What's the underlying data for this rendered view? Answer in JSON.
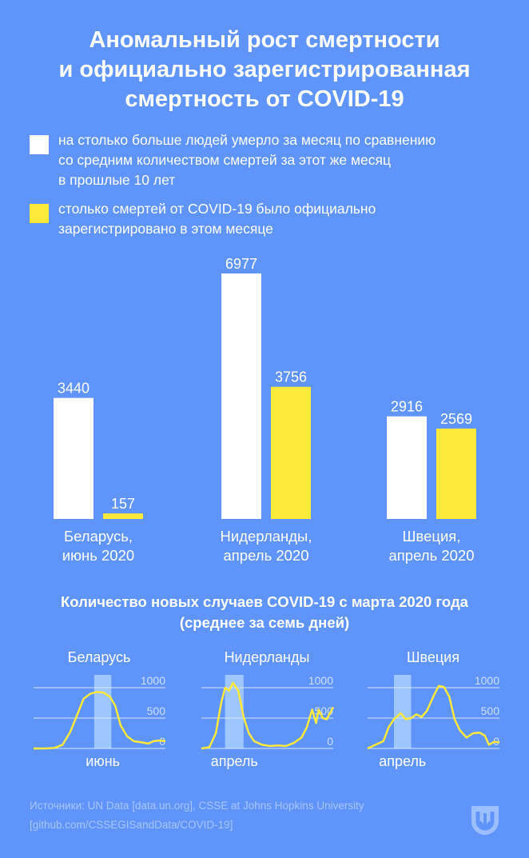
{
  "title": {
    "line1": "Аномальный рост смертности",
    "line2": "и официально зарегистрированная",
    "line3": "смертность от COVID-19"
  },
  "legend": {
    "excess": {
      "line1": "на столько больше людей умерло за месяц по сравнению",
      "line2": "со средним количеством смертей за этот же месяц",
      "line3": "в прошлые 10 лет",
      "color": "#FFFFFF"
    },
    "covid": {
      "line1": "столько смертей от COVID-19 было официально",
      "line2": "зарегистрировано в этом месяце",
      "color": "#FFE93B"
    }
  },
  "chart_data": [
    {
      "type": "bar",
      "categories": [
        {
          "line1": "Беларусь,",
          "line2": "июнь 2020"
        },
        {
          "line1": "Нидерланды,",
          "line2": "апрель 2020"
        },
        {
          "line1": "Швеция,",
          "line2": "апрель 2020"
        }
      ],
      "series": [
        {
          "values": [
            3440,
            6977,
            2916
          ],
          "labels": [
            "3440",
            "6977",
            "2916"
          ],
          "color": "#FFFFFF"
        },
        {
          "values": [
            157,
            3756,
            2569
          ],
          "labels": [
            "157",
            "3756",
            "2569"
          ],
          "color": "#FFE93B"
        }
      ],
      "ylim": [
        0,
        6977
      ]
    },
    {
      "type": "line",
      "title": "Количество новых случаев COVID-19 с марта 2020 года",
      "subtitle": "(среднее за семь дней)",
      "yticks": [
        "0",
        "500",
        "1000"
      ],
      "ylim": [
        0,
        1000
      ],
      "line_color": "#FFE93B",
      "highlight_color": "#A9CFFF",
      "panels": [
        {
          "name": "Беларусь",
          "highlight_month": "июнь",
          "highlight_range": [
            0.46,
            0.59
          ],
          "points": [
            [
              0.0,
              0
            ],
            [
              0.1,
              0
            ],
            [
              0.16,
              10
            ],
            [
              0.22,
              60
            ],
            [
              0.28,
              280
            ],
            [
              0.33,
              550
            ],
            [
              0.38,
              820
            ],
            [
              0.43,
              900
            ],
            [
              0.48,
              930
            ],
            [
              0.53,
              920
            ],
            [
              0.58,
              850
            ],
            [
              0.62,
              700
            ],
            [
              0.66,
              380
            ],
            [
              0.71,
              200
            ],
            [
              0.76,
              120
            ],
            [
              0.82,
              100
            ],
            [
              0.87,
              80
            ],
            [
              0.91,
              120
            ],
            [
              0.95,
              130
            ],
            [
              1.0,
              120
            ]
          ]
        },
        {
          "name": "Нидерланды",
          "highlight_month": "апрель",
          "highlight_range": [
            0.18,
            0.32
          ],
          "points": [
            [
              0.0,
              0
            ],
            [
              0.06,
              20
            ],
            [
              0.11,
              250
            ],
            [
              0.15,
              750
            ],
            [
              0.18,
              1000
            ],
            [
              0.21,
              950
            ],
            [
              0.24,
              1080
            ],
            [
              0.28,
              950
            ],
            [
              0.32,
              520
            ],
            [
              0.36,
              250
            ],
            [
              0.4,
              120
            ],
            [
              0.46,
              60
            ],
            [
              0.52,
              40
            ],
            [
              0.58,
              50
            ],
            [
              0.64,
              40
            ],
            [
              0.7,
              90
            ],
            [
              0.76,
              180
            ],
            [
              0.8,
              350
            ],
            [
              0.84,
              640
            ],
            [
              0.87,
              420
            ],
            [
              0.89,
              640
            ],
            [
              0.92,
              500
            ],
            [
              0.95,
              480
            ],
            [
              1.0,
              680
            ]
          ]
        },
        {
          "name": "Швеция",
          "highlight_month": "апрель",
          "highlight_range": [
            0.2,
            0.33
          ],
          "points": [
            [
              0.0,
              0
            ],
            [
              0.06,
              60
            ],
            [
              0.12,
              120
            ],
            [
              0.16,
              350
            ],
            [
              0.2,
              480
            ],
            [
              0.25,
              580
            ],
            [
              0.29,
              480
            ],
            [
              0.33,
              500
            ],
            [
              0.37,
              560
            ],
            [
              0.41,
              520
            ],
            [
              0.45,
              620
            ],
            [
              0.5,
              860
            ],
            [
              0.54,
              1030
            ],
            [
              0.58,
              1010
            ],
            [
              0.62,
              850
            ],
            [
              0.66,
              480
            ],
            [
              0.7,
              300
            ],
            [
              0.75,
              180
            ],
            [
              0.8,
              250
            ],
            [
              0.85,
              260
            ],
            [
              0.89,
              210
            ],
            [
              0.92,
              60
            ],
            [
              0.96,
              110
            ],
            [
              1.0,
              100
            ]
          ]
        }
      ]
    }
  ],
  "sources": {
    "line1": "Источники: UN Data [data.un.org], CSSE at Johns Hopkins University",
    "line2": "[github.com/CSSEGISandData/COVID-19]"
  },
  "logo_icon": "shield-arrow-logo"
}
